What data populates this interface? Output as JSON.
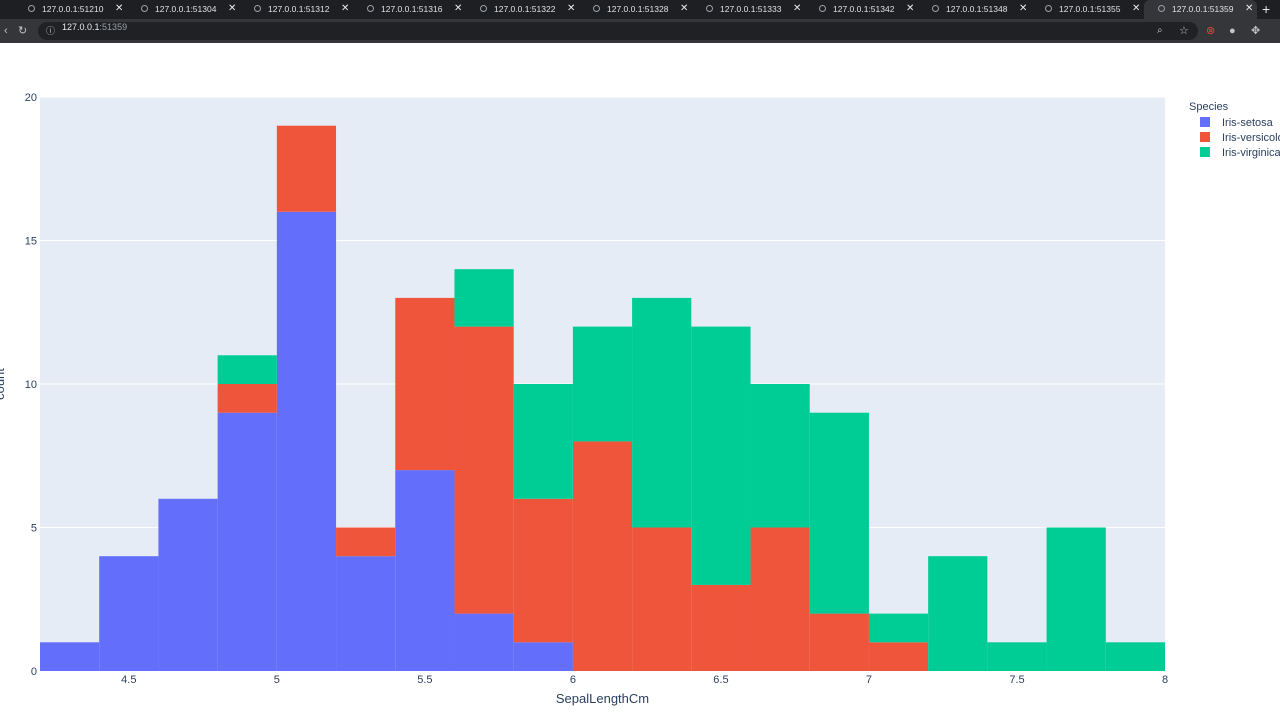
{
  "browser": {
    "tabs": [
      {
        "title": "127.0.0.1:51210",
        "close": "✕"
      },
      {
        "title": "127.0.0.1:51304",
        "close": "✕"
      },
      {
        "title": "127.0.0.1:51312",
        "close": "✕"
      },
      {
        "title": "127.0.0.1:51316",
        "close": "✕"
      },
      {
        "title": "127.0.0.1:51322",
        "close": "✕"
      },
      {
        "title": "127.0.0.1:51328",
        "close": "✕"
      },
      {
        "title": "127.0.0.1:51333",
        "close": "✕"
      },
      {
        "title": "127.0.0.1:51342",
        "close": "✕"
      },
      {
        "title": "127.0.0.1:51348",
        "close": "✕"
      },
      {
        "title": "127.0.0.1:51355",
        "close": "✕"
      },
      {
        "title": "127.0.0.1:51359",
        "close": "✕"
      }
    ],
    "new_tab": "+",
    "url_host": "127.0.0.1",
    "url_port": ":51359",
    "icons": [
      "reload-icon",
      "info-icon",
      "zoom-icon",
      "bookmark-star-icon",
      "extension-red-icon",
      "github-icon",
      "puzzle-extensions-icon"
    ]
  },
  "chart_data": {
    "type": "bar",
    "stacked": true,
    "xlabel": "SepalLengthCm",
    "ylabel": "count",
    "bin_edges": [
      4.2,
      4.4,
      4.6,
      4.8,
      5.0,
      5.2,
      5.4,
      5.6,
      5.8,
      6.0,
      6.2,
      6.4,
      6.6,
      6.8,
      7.0,
      7.2,
      7.4,
      7.6,
      7.8,
      8.0
    ],
    "xlim": [
      4.2,
      8.0
    ],
    "ylim": [
      0,
      20
    ],
    "x_ticks": [
      "4.5",
      "5",
      "5.5",
      "6",
      "6.5",
      "7",
      "7.5",
      "8"
    ],
    "x_tick_values": [
      4.5,
      5,
      5.5,
      6,
      6.5,
      7,
      7.5,
      8
    ],
    "y_ticks": [
      "0",
      "5",
      "10",
      "15",
      "20"
    ],
    "y_tick_values": [
      0,
      5,
      10,
      15,
      20
    ],
    "grid": true,
    "legend_title": "Species",
    "legend_position": "right",
    "series": [
      {
        "name": "Iris-setosa",
        "color": "#636efa",
        "values": [
          1,
          4,
          6,
          9,
          16,
          4,
          7,
          2,
          1,
          0,
          0,
          0,
          0,
          0,
          0,
          0,
          0,
          0,
          0
        ]
      },
      {
        "name": "Iris-versicolor",
        "color": "#ef553b",
        "values": [
          0,
          0,
          0,
          1,
          3,
          1,
          6,
          10,
          5,
          8,
          5,
          3,
          5,
          2,
          1,
          0,
          0,
          0,
          0
        ]
      },
      {
        "name": "Iris-virginica",
        "color": "#00cc96",
        "values": [
          0,
          0,
          0,
          1,
          0,
          0,
          0,
          2,
          4,
          4,
          8,
          9,
          5,
          7,
          1,
          4,
          1,
          5,
          1
        ]
      }
    ],
    "colors": {
      "plot_bg": "#e5ecf6",
      "grid": "#ffffff",
      "text": "#2a3f5f"
    }
  }
}
